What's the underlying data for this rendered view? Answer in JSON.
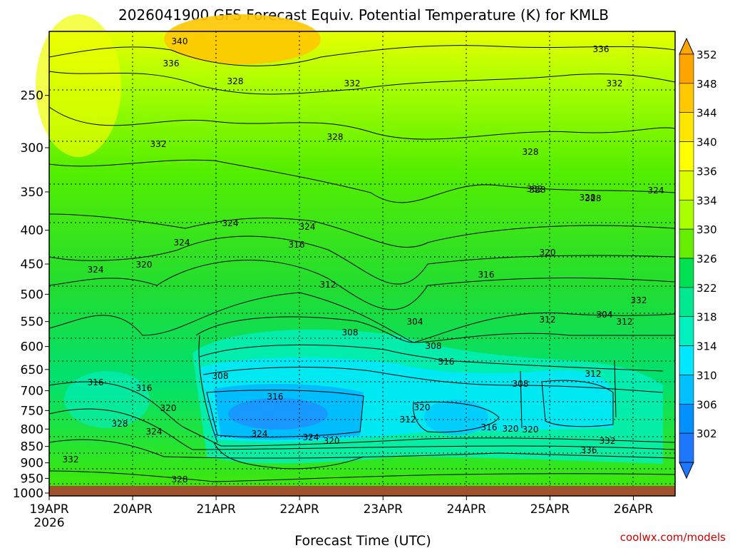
{
  "chart_data": {
    "type": "heatmap",
    "title": "2026041900 GFS Forecast Equiv. Potential Temperature (K) for KMLB",
    "xlabel": "Forecast Time (UTC)",
    "ylabel": "",
    "credit": "coolwx.com/models",
    "x_ticks": [
      "19APR",
      "20APR",
      "21APR",
      "22APR",
      "23APR",
      "24APR",
      "25APR",
      "26APR"
    ],
    "x_tick_year": "2026",
    "y_ticks": [
      "250",
      "300",
      "350",
      "400",
      "450",
      "500",
      "550",
      "600",
      "650",
      "700",
      "750",
      "800",
      "850",
      "900",
      "950",
      "1000"
    ],
    "y_axis_log_pressure": true,
    "y_range_hPa": [
      200,
      1010
    ],
    "colorbar_levels": [
      "352",
      "348",
      "344",
      "340",
      "336",
      "334",
      "330",
      "326",
      "322",
      "318",
      "314",
      "310",
      "306",
      "302"
    ],
    "colorbar_colors": [
      "#ffa500",
      "#ffc800",
      "#ffe600",
      "#ffff00",
      "#d9ff00",
      "#aaff00",
      "#66ee00",
      "#00e050",
      "#00e890",
      "#00f0c0",
      "#00e8ff",
      "#00c0ff",
      "#0090ff",
      "#1e78ff"
    ],
    "ground_color": "#a0522d",
    "contour_labels": [
      "340",
      "336",
      "336",
      "332",
      "332",
      "332",
      "328",
      "328",
      "328",
      "328",
      "324",
      "324",
      "324",
      "324",
      "324",
      "320",
      "320",
      "316",
      "316",
      "312",
      "312",
      "308",
      "304",
      "304",
      "312",
      "308",
      "316",
      "308",
      "316",
      "312",
      "308",
      "320",
      "312",
      "316",
      "320",
      "320",
      "324",
      "324",
      "320",
      "316",
      "316",
      "320",
      "328",
      "324",
      "332",
      "328",
      "332",
      "336",
      "332",
      "328",
      "328",
      "332"
    ]
  }
}
